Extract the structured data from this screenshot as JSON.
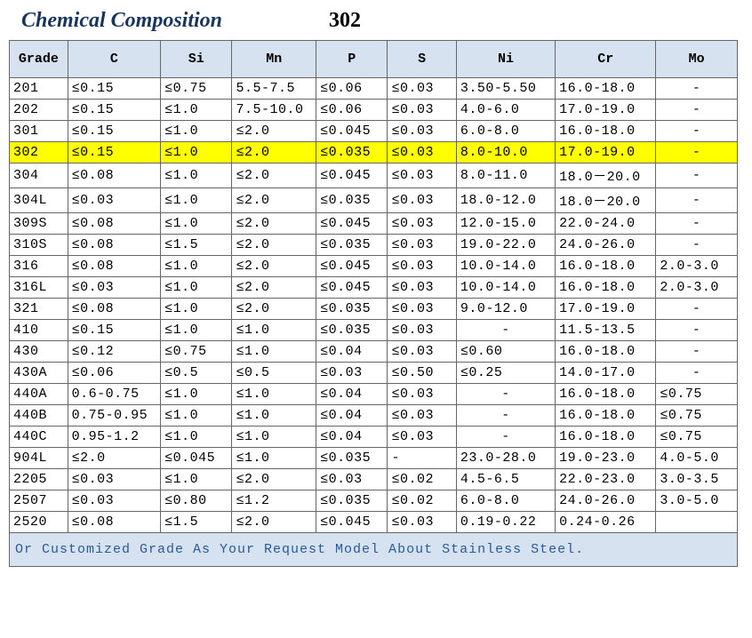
{
  "title": {
    "main": "Chemical Composition",
    "number": "302"
  },
  "table": {
    "columns": [
      "Grade",
      "C",
      "Si",
      "Mn",
      "P",
      "S",
      "Ni",
      "Cr",
      "Mo"
    ],
    "col_classes": [
      "col-grade",
      "col-c",
      "col-si",
      "col-mn",
      "col-p",
      "col-s",
      "col-ni",
      "col-cr",
      "col-mo"
    ],
    "highlight_grade": "302",
    "center_dash_cols": [
      6,
      8
    ],
    "rows": [
      [
        "201",
        "≤0.15",
        "≤0.75",
        "5.5-7.5",
        "≤0.06",
        "≤0.03",
        "3.50-5.50",
        "16.0-18.0",
        "-"
      ],
      [
        "202",
        "≤0.15",
        "≤1.0",
        "7.5-10.0",
        "≤0.06",
        "≤0.03",
        "4.0-6.0",
        "17.0-19.0",
        "-"
      ],
      [
        "301",
        "≤0.15",
        "≤1.0",
        "≤2.0",
        "≤0.045",
        "≤0.03",
        "6.0-8.0",
        "16.0-18.0",
        "-"
      ],
      [
        "302",
        "≤0.15",
        "≤1.0",
        "≤2.0",
        "≤0.035",
        "≤0.03",
        "8.0-10.0",
        "17.0-19.0",
        "-"
      ],
      [
        "304",
        "≤0.08",
        "≤1.0",
        "≤2.0",
        "≤0.045",
        "≤0.03",
        "8.0-11.0",
        "18.0－20.0",
        "-"
      ],
      [
        "304L",
        "≤0.03",
        "≤1.0",
        "≤2.0",
        "≤0.035",
        "≤0.03",
        "18.0-12.0",
        "18.0－20.0",
        "-"
      ],
      [
        "309S",
        "≤0.08",
        "≤1.0",
        "≤2.0",
        "≤0.045",
        "≤0.03",
        "12.0-15.0",
        "22.0-24.0",
        "-"
      ],
      [
        "310S",
        "≤0.08",
        "≤1.5",
        "≤2.0",
        "≤0.035",
        "≤0.03",
        "19.0-22.0",
        "24.0-26.0",
        "-"
      ],
      [
        "316",
        "≤0.08",
        "≤1.0",
        "≤2.0",
        "≤0.045",
        "≤0.03",
        "10.0-14.0",
        "16.0-18.0",
        "2.0-3.0"
      ],
      [
        "316L",
        "≤0.03",
        "≤1.0",
        "≤2.0",
        "≤0.045",
        "≤0.03",
        "10.0-14.0",
        "16.0-18.0",
        "2.0-3.0"
      ],
      [
        "321",
        "≤0.08",
        "≤1.0",
        "≤2.0",
        "≤0.035",
        "≤0.03",
        "9.0-12.0",
        "17.0-19.0",
        "-"
      ],
      [
        "410",
        "≤0.15",
        "≤1.0",
        "≤1.0",
        "≤0.035",
        "≤0.03",
        "-",
        "11.5-13.5",
        "-"
      ],
      [
        "430",
        "≤0.12",
        "≤0.75",
        "≤1.0",
        "≤0.04",
        "≤0.03",
        "≤0.60",
        "16.0-18.0",
        "-"
      ],
      [
        "430A",
        "≤0.06",
        "≤0.5",
        "≤0.5",
        "≤0.03",
        "≤0.50",
        "≤0.25",
        "14.0-17.0",
        "-"
      ],
      [
        "440A",
        "0.6-0.75",
        "≤1.0",
        "≤1.0",
        "≤0.04",
        "≤0.03",
        "-",
        "16.0-18.0",
        "≤0.75"
      ],
      [
        "440B",
        "0.75-0.95",
        "≤1.0",
        "≤1.0",
        "≤0.04",
        "≤0.03",
        "-",
        "16.0-18.0",
        "≤0.75"
      ],
      [
        "440C",
        "0.95-1.2",
        "≤1.0",
        "≤1.0",
        "≤0.04",
        "≤0.03",
        "-",
        "16.0-18.0",
        "≤0.75"
      ],
      [
        "904L",
        "≤2.0",
        "≤0.045",
        "≤1.0",
        "≤0.035",
        "-",
        "23.0-28.0",
        "19.0-23.0",
        "4.0-5.0"
      ],
      [
        "2205",
        "≤0.03",
        "≤1.0",
        "≤2.0",
        "≤0.03",
        "≤0.02",
        "4.5-6.5",
        "22.0-23.0",
        "3.0-3.5"
      ],
      [
        "2507",
        "≤0.03",
        "≤0.80",
        "≤1.2",
        "≤0.035",
        "≤0.02",
        "6.0-8.0",
        "24.0-26.0",
        "3.0-5.0"
      ],
      [
        "2520",
        "≤0.08",
        "≤1.5",
        "≤2.0",
        "≤0.045",
        "≤0.03",
        "0.19-0.22",
        "0.24-0.26",
        ""
      ]
    ]
  },
  "footnote": "Or Customized Grade As Your Request Model About Stainless Steel.",
  "colors": {
    "header_bg": "#d6e2ef",
    "highlight_bg": "#ffff00",
    "title_color": "#18365d",
    "footnote_color": "#2a5a9a",
    "border": "#666"
  }
}
